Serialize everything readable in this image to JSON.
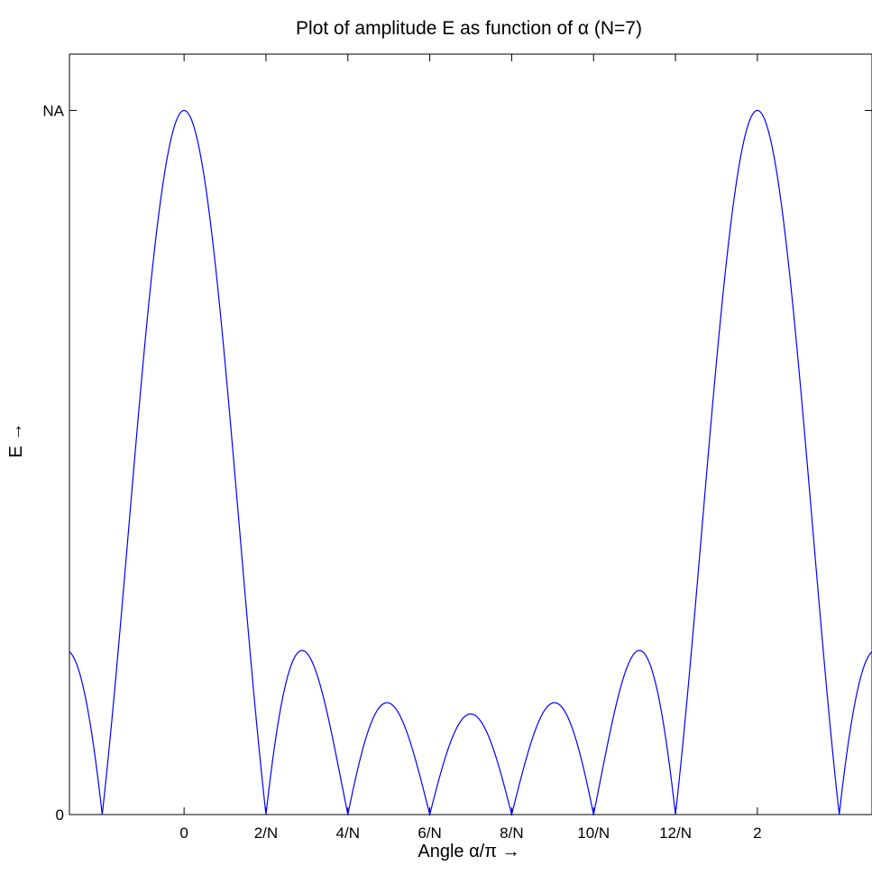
{
  "chart_data": {
    "type": "line",
    "title": "Plot of amplitude E as function of α (N=7)",
    "xlabel": "Angle α/π →",
    "ylabel": "E →",
    "N": 7,
    "xlim": [
      -0.4,
      2.4
    ],
    "ylim": [
      0,
      1.08
    ],
    "grid": false,
    "x_ticks": [
      {
        "value": 0,
        "label": "0"
      },
      {
        "value": 0.2857,
        "label": "2/N"
      },
      {
        "value": 0.5714,
        "label": "4/N"
      },
      {
        "value": 0.8571,
        "label": "6/N"
      },
      {
        "value": 1.1429,
        "label": "8/N"
      },
      {
        "value": 1.4286,
        "label": "10/N"
      },
      {
        "value": 1.7143,
        "label": "12/N"
      },
      {
        "value": 2,
        "label": "2"
      }
    ],
    "y_ticks": [
      {
        "value": 0,
        "label": "0"
      },
      {
        "value": 1,
        "label": "NA"
      }
    ],
    "series": [
      {
        "color": "#0000ff",
        "function": "|sin(N·π·x/2) / (N·sin(π·x/2))|",
        "x_range": [
          -0.4,
          2.4
        ],
        "peaks": [
          {
            "x": 0,
            "y": 1
          },
          {
            "x": 0.4286,
            "y": 0.23
          },
          {
            "x": 0.7143,
            "y": 0.15
          },
          {
            "x": 1,
            "y": 0.14
          },
          {
            "x": 1.2857,
            "y": 0.15
          },
          {
            "x": 1.5714,
            "y": 0.23
          },
          {
            "x": 2,
            "y": 1
          }
        ],
        "zeros": [
          -0.2857,
          0.2857,
          0.5714,
          0.8571,
          1.1429,
          1.4286,
          1.7143,
          2.2857
        ]
      }
    ]
  }
}
